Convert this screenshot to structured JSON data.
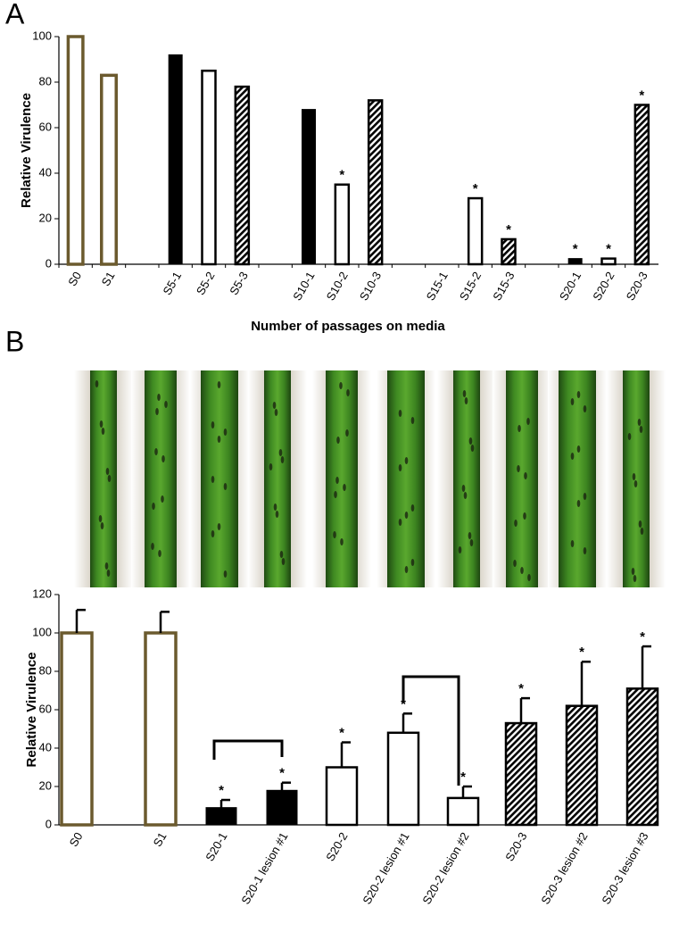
{
  "chart_data": [
    {
      "type": "bar",
      "panel_label": "A",
      "y_label": "Relative Virulence",
      "x_label": "Number of passages on media",
      "categories": [
        "S0",
        "S1",
        null,
        "S5-1",
        "S5-2",
        "S5-3",
        null,
        "S10-1",
        "S10-2",
        "S10-3",
        null,
        "S15-1",
        "S15-2",
        "S15-3",
        null,
        "S20-1",
        "S20-2",
        "S20-3"
      ],
      "values": [
        100,
        83,
        null,
        92,
        85,
        78,
        null,
        68,
        35,
        72,
        null,
        0,
        29,
        11,
        null,
        2.5,
        2.5,
        70
      ],
      "bar_styles": [
        "olive",
        "olive",
        null,
        "black",
        "white",
        "hatched",
        null,
        "black",
        "white",
        "hatched",
        null,
        "black",
        "white",
        "hatched",
        null,
        "black",
        "white",
        "hatched"
      ],
      "annotations": [
        null,
        null,
        null,
        null,
        null,
        null,
        null,
        null,
        "*",
        null,
        null,
        null,
        "*",
        "*",
        null,
        "*",
        "*",
        "*"
      ],
      "ylim": [
        0,
        100
      ],
      "yticks": [
        0,
        20,
        40,
        60,
        80,
        100
      ],
      "grid": false
    },
    {
      "type": "bar_error",
      "panel_label": "B",
      "y_label": "Relative Virulence",
      "categories": [
        "S0",
        "S1",
        "S20-1",
        "S20-1 lesion #1",
        "S20-2",
        "S20-2 lesion #1",
        "S20-2 lesion #2",
        "S20-3",
        "S20-3 lesion #2",
        "S20-3 lesion #3"
      ],
      "values": [
        100,
        100,
        9,
        18,
        30,
        48,
        14,
        53,
        62,
        71
      ],
      "errors": [
        12,
        11,
        4,
        4,
        13,
        10,
        6,
        13,
        23,
        22
      ],
      "bar_styles": [
        "olive",
        "olive",
        "black",
        "black",
        "white",
        "white",
        "white",
        "hatched",
        "hatched",
        "hatched"
      ],
      "annotations": [
        null,
        null,
        "*",
        "*",
        "*",
        "*",
        "*",
        "*",
        "*",
        "*"
      ],
      "ylim": [
        0,
        120
      ],
      "yticks": [
        0,
        20,
        40,
        60,
        80,
        100,
        120
      ],
      "grid": false
    }
  ]
}
